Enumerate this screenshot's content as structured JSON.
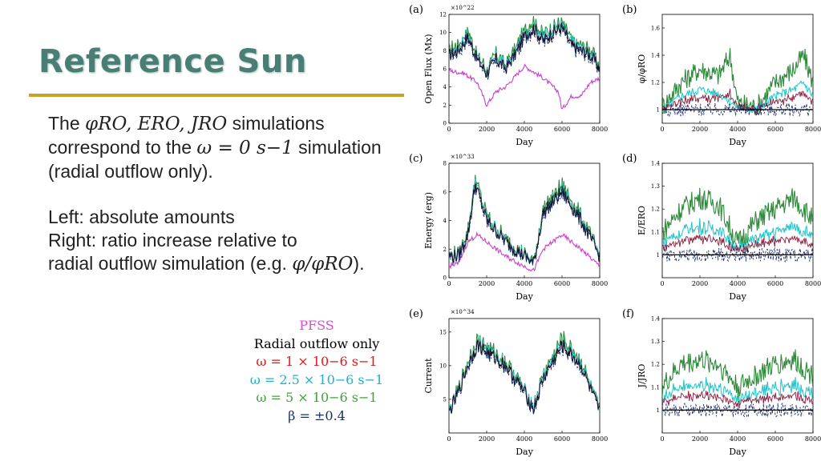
{
  "slide": {
    "title": "Reference Sun",
    "para1": {
      "l1_prefix": "The ",
      "l1_sims": "φRO, ERO, JRO",
      "l1_suffix": " simulations",
      "l2_prefix": "correspond to the ",
      "l2_eq": "ω = 0 s−1",
      "l2_suffix": " simulation",
      "l3": "(radial outflow only)."
    },
    "para2": {
      "l1": "Left: absolute amounts",
      "l2": "Right: ratio increase relative to",
      "l3_prefix": "radial outflow simulation (e.g. ",
      "l3_eq": "φ/φRO",
      "l3_suffix": ")."
    },
    "legend": [
      {
        "label": "PFSS",
        "color": "#e04ad0"
      },
      {
        "label": "Radial outflow only",
        "color": "#000000"
      },
      {
        "label": "ω = 1 × 10−6 s−1",
        "color": "#e01818"
      },
      {
        "label": "ω = 2.5 × 10−6 s−1",
        "color": "#19b2cf"
      },
      {
        "label": "ω = 5 × 10−6 s−1",
        "color": "#3ca33a"
      },
      {
        "label": "β = ±0.4",
        "color": "#1a2d5e"
      }
    ]
  },
  "series_colors": {
    "PFSS": "#cc3fcc",
    "Radial": "#000000",
    "w1": "#8b1a3a",
    "w25": "#1fc4c8",
    "w5": "#2e8b3a",
    "beta": "#1a2d6e"
  },
  "chart_data": [
    {
      "id": "a",
      "type": "line",
      "panel_label": "(a)",
      "ylabel": "Open Flux (Mx)",
      "xlabel": "Day",
      "exponent": "×10^22",
      "xlim": [
        0,
        8000
      ],
      "ylim": [
        0,
        12
      ],
      "xticks": [
        0,
        2000,
        4000,
        6000,
        8000
      ],
      "yticks": [
        0,
        2,
        4,
        6,
        8,
        10,
        12
      ],
      "series": [
        {
          "name": "PFSS",
          "points": [
            [
              0,
              5.8
            ],
            [
              800,
              5.5
            ],
            [
              1500,
              4.5
            ],
            [
              2000,
              2
            ],
            [
              2500,
              3.5
            ],
            [
              3000,
              4
            ],
            [
              4000,
              6.3
            ],
            [
              5000,
              5
            ],
            [
              5800,
              3.5
            ],
            [
              6000,
              1.5
            ],
            [
              6500,
              3
            ],
            [
              7000,
              3
            ],
            [
              7500,
              4.5
            ],
            [
              8000,
              5
            ]
          ]
        },
        {
          "name": "Radial outflow only",
          "points": [
            [
              0,
              7.5
            ],
            [
              500,
              8
            ],
            [
              1000,
              9.5
            ],
            [
              1500,
              7
            ],
            [
              2000,
              5.5
            ],
            [
              2500,
              7
            ],
            [
              3000,
              6
            ],
            [
              3500,
              7.5
            ],
            [
              4000,
              9.5
            ],
            [
              4500,
              10.5
            ],
            [
              5000,
              9
            ],
            [
              5500,
              10
            ],
            [
              6000,
              10.5
            ],
            [
              6500,
              8.5
            ],
            [
              7000,
              8
            ],
            [
              7500,
              7.5
            ],
            [
              8000,
              6
            ]
          ]
        }
      ]
    },
    {
      "id": "b",
      "type": "line",
      "panel_label": "(b)",
      "ylabel": "φ/φRO",
      "xlabel": "Day",
      "xlim": [
        0,
        8000
      ],
      "ylim": [
        0.9,
        1.7
      ],
      "xticks": [
        0,
        2000,
        4000,
        6000,
        8000
      ],
      "yticks": [
        1.0,
        1.2,
        1.4,
        1.6
      ],
      "series": [
        {
          "name": "ω = 5 × 10−6 s−1",
          "points": [
            [
              0,
              1.02
            ],
            [
              1000,
              1.2
            ],
            [
              2000,
              1.3
            ],
            [
              3000,
              1.25
            ],
            [
              3600,
              1.4
            ],
            [
              4000,
              1.05
            ],
            [
              5000,
              1.02
            ],
            [
              6000,
              1.2
            ],
            [
              7000,
              1.3
            ],
            [
              7500,
              1.4
            ],
            [
              8000,
              1.2
            ]
          ]
        },
        {
          "name": "ω = 2.5 × 10−6 s−1",
          "points": [
            [
              0,
              1.0
            ],
            [
              1000,
              1.1
            ],
            [
              2000,
              1.15
            ],
            [
              3000,
              1.12
            ],
            [
              4000,
              1.02
            ],
            [
              5000,
              1.0
            ],
            [
              6000,
              1.1
            ],
            [
              7000,
              1.15
            ],
            [
              7500,
              1.2
            ],
            [
              8000,
              1.1
            ]
          ]
        }
      ]
    },
    {
      "id": "c",
      "type": "line",
      "panel_label": "(c)",
      "ylabel": "Energy (erg)",
      "xlabel": "Day",
      "exponent": "×10^33",
      "xlim": [
        0,
        8000
      ],
      "ylim": [
        0,
        8
      ],
      "xticks": [
        0,
        2000,
        4000,
        6000,
        8000
      ],
      "yticks": [
        0,
        2,
        4,
        6,
        8
      ],
      "series": [
        {
          "name": "PFSS",
          "points": [
            [
              0,
              0.8
            ],
            [
              500,
              1
            ],
            [
              1000,
              2.5
            ],
            [
              1500,
              3
            ],
            [
              2000,
              2.5
            ],
            [
              3000,
              1.5
            ],
            [
              4000,
              0.8
            ],
            [
              4500,
              0.5
            ],
            [
              5000,
              2
            ],
            [
              6000,
              3
            ],
            [
              6500,
              2.5
            ],
            [
              7000,
              2
            ],
            [
              8000,
              0.8
            ]
          ]
        },
        {
          "name": "Radial outflow only",
          "points": [
            [
              0,
              1.5
            ],
            [
              500,
              1.5
            ],
            [
              1000,
              3
            ],
            [
              1400,
              6.5
            ],
            [
              2000,
              4
            ],
            [
              3000,
              2.5
            ],
            [
              4000,
              1.5
            ],
            [
              4500,
              1
            ],
            [
              5000,
              4.5
            ],
            [
              6000,
              6
            ],
            [
              7000,
              4
            ],
            [
              8000,
              1.5
            ]
          ]
        }
      ]
    },
    {
      "id": "d",
      "type": "line",
      "panel_label": "(d)",
      "ylabel": "E/ERO",
      "xlabel": "Day",
      "xlim": [
        0,
        8000
      ],
      "ylim": [
        0.9,
        1.4
      ],
      "xticks": [
        0,
        2000,
        4000,
        6000,
        8000
      ],
      "yticks": [
        1.0,
        1.1,
        1.2,
        1.3,
        1.4
      ],
      "series": [
        {
          "name": "ω = 5 × 10−6 s−1",
          "points": [
            [
              0,
              1.1
            ],
            [
              1000,
              1.2
            ],
            [
              2000,
              1.25
            ],
            [
              3000,
              1.22
            ],
            [
              4000,
              1.05
            ],
            [
              5000,
              1.15
            ],
            [
              6000,
              1.2
            ],
            [
              7000,
              1.25
            ],
            [
              8000,
              1.15
            ]
          ]
        }
      ]
    },
    {
      "id": "e",
      "type": "line",
      "panel_label": "(e)",
      "ylabel": "Current",
      "xlabel": "Day",
      "exponent": "×10^34",
      "xlim": [
        0,
        8000
      ],
      "ylim": [
        0,
        17
      ],
      "xticks": [
        0,
        2000,
        4000,
        6000,
        8000
      ],
      "yticks": [
        5,
        10,
        15
      ],
      "series": [
        {
          "name": "Radial outflow only",
          "points": [
            [
              0,
              3
            ],
            [
              500,
              6
            ],
            [
              1000,
              10
            ],
            [
              1500,
              13
            ],
            [
              2000,
              12
            ],
            [
              3000,
              10
            ],
            [
              4000,
              6
            ],
            [
              4500,
              3.5
            ],
            [
              5000,
              8
            ],
            [
              6000,
              13
            ],
            [
              7000,
              10
            ],
            [
              8000,
              3
            ]
          ]
        }
      ]
    },
    {
      "id": "f",
      "type": "line",
      "panel_label": "(f)",
      "ylabel": "J/JRO",
      "xlabel": "Day",
      "xlim": [
        0,
        8000
      ],
      "ylim": [
        0.9,
        1.4
      ],
      "xticks": [
        0,
        2000,
        4000,
        6000,
        8000
      ],
      "yticks": [
        1.0,
        1.1,
        1.2,
        1.3,
        1.4
      ],
      "series": [
        {
          "name": "ω = 5 × 10−6 s−1",
          "points": [
            [
              0,
              1.1
            ],
            [
              1000,
              1.2
            ],
            [
              2000,
              1.22
            ],
            [
              3000,
              1.2
            ],
            [
              4000,
              1.1
            ],
            [
              5000,
              1.15
            ],
            [
              6000,
              1.2
            ],
            [
              7000,
              1.22
            ],
            [
              8000,
              1.15
            ]
          ]
        }
      ]
    }
  ]
}
